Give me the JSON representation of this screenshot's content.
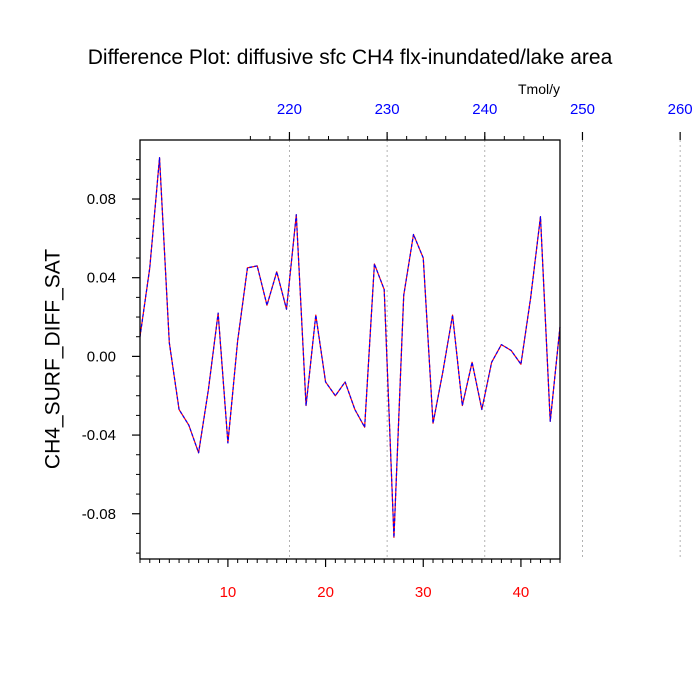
{
  "chart_data": {
    "type": "line",
    "title": "Difference Plot: diffusive sfc CH4 flx-inundated/lake area",
    "xlabel": "",
    "ylabel": "CH4_SURF_DIFF_SAT",
    "top_axis_unit": "Tmol/y",
    "xlim": [
      1,
      44
    ],
    "ylim": [
      -0.103,
      0.11
    ],
    "x_ticks": [
      "10",
      "20",
      "30",
      "40"
    ],
    "x_tick_values": [
      10,
      20,
      30,
      40
    ],
    "y_ticks": [
      "0.08",
      "0.04",
      "0.00",
      "-0.04",
      "-0.08"
    ],
    "y_tick_values": [
      0.08,
      0.04,
      0.0,
      -0.04,
      -0.08
    ],
    "top_ticks": [
      "220",
      "230",
      "240",
      "250",
      "260"
    ],
    "top_tick_positions_x": [
      16.3,
      26.3,
      36.3,
      46.3,
      56.3
    ],
    "grid": "vertical dashed at top-axis ticks",
    "colors": {
      "line_primary": "#ff0000",
      "line_secondary": "#0000ff",
      "bottom_ticks": "#ff0000",
      "top_ticks": "#0000ff",
      "axis": "#000000",
      "grid": "#a0a0a0"
    },
    "series": [
      {
        "x": [
          1,
          2,
          3,
          4,
          5,
          6,
          7,
          8,
          9,
          10,
          11,
          12,
          13,
          14,
          15,
          16,
          17,
          18,
          19,
          20,
          21,
          22,
          23,
          24,
          25,
          26,
          27,
          28,
          29,
          30,
          31,
          32,
          33,
          34,
          35,
          36,
          37,
          38,
          39,
          40,
          41,
          42,
          43,
          44
        ],
        "values": [
          0.01,
          0.045,
          0.101,
          0.007,
          -0.027,
          -0.035,
          -0.049,
          -0.017,
          0.022,
          -0.044,
          0.008,
          0.045,
          0.046,
          0.026,
          0.043,
          0.024,
          0.072,
          -0.025,
          0.021,
          -0.013,
          -0.02,
          -0.013,
          -0.027,
          -0.036,
          0.047,
          0.034,
          -0.092,
          0.031,
          0.062,
          0.05,
          -0.034,
          -0.008,
          0.021,
          -0.025,
          -0.003,
          -0.027,
          -0.003,
          0.006,
          0.003,
          -0.004,
          0.03,
          0.071,
          -0.033,
          0.015
        ]
      }
    ]
  }
}
